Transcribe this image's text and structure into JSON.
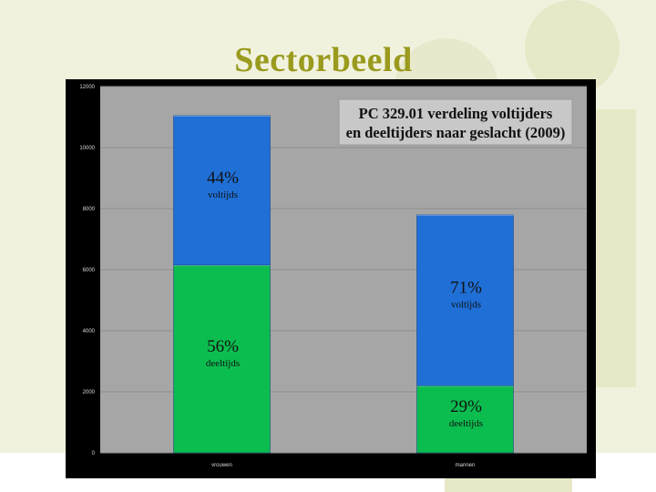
{
  "slide": {
    "title": "Sectorbeeld"
  },
  "colors": {
    "background": "#f1f2de",
    "decor": "#e6e8c8",
    "title": "#9a9a1e",
    "plot_background": "#a6a6a6",
    "fulltime": "#1f6fd6",
    "parttime": "#0bbd4f",
    "annotation": "#111111"
  },
  "chart_data": {
    "type": "bar",
    "stacked": true,
    "title_lines": [
      "PC 329.01 verdeling voltijders",
      "en deeltijders naar geslacht (2009)"
    ],
    "categories": [
      "vrouwen",
      "mannen"
    ],
    "y_ticks": [
      "0",
      "2000",
      "4000",
      "6000",
      "8000",
      "10000",
      "12000"
    ],
    "ylim": [
      0,
      12000
    ],
    "grid": true,
    "legend": "none",
    "series": [
      {
        "values": [
          6150,
          2200
        ],
        "color": "#0bbd4f",
        "annotations": [
          {
            "percent": "56%",
            "label": "deeltijds"
          },
          {
            "percent": "29%",
            "label": "deeltijds"
          }
        ]
      },
      {
        "values": [
          4900,
          5600
        ],
        "color": "#1f6fd6",
        "annotations": [
          {
            "percent": "44%",
            "label": "voltijds"
          },
          {
            "percent": "71%",
            "label": "voltijds"
          }
        ]
      }
    ]
  }
}
